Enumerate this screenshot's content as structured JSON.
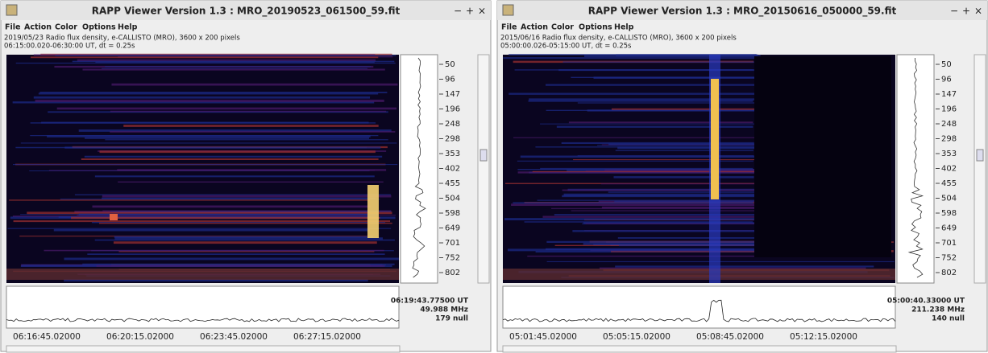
{
  "windows": [
    {
      "title": "RAPP Viewer Version 1.3 : MRO_20190523_061500_59.fit",
      "controls": [
        "−",
        "+",
        "×"
      ],
      "menu": [
        "File",
        "Action",
        "Color",
        "Options",
        "Help"
      ],
      "info": [
        "2019/05/23  Radio flux density, e-CALLISTO (MRO),  3600 x 200 pixels",
        "06:15:00.020-06:30:00 UT,  dt = 0.25s"
      ],
      "freq_ticks": [
        "50",
        "96",
        "147",
        "196",
        "248",
        "298",
        "353",
        "402",
        "455",
        "504",
        "598",
        "649",
        "701",
        "752",
        "802"
      ],
      "cursor": [
        "06:19:43.77500 UT",
        "49.988 MHz",
        "179 null"
      ],
      "time_ticks": [
        "06:16:45.02000",
        "06:20:15.02000",
        "06:23:45.02000",
        "06:27:15.02000"
      ]
    },
    {
      "title": "RAPP Viewer Version 1.3 : MRO_20150616_050000_59.fit",
      "controls": [
        "−",
        "+",
        "×"
      ],
      "menu": [
        "File",
        "Action",
        "Color",
        "Options",
        "Help"
      ],
      "info": [
        "2015/06/16  Radio flux density, e-CALLISTO (MRO),  3600 x 200 pixels",
        "05:00:00.026-05:15:00 UT,  dt = 0.25s"
      ],
      "freq_ticks": [
        "50",
        "96",
        "147",
        "196",
        "248",
        "298",
        "353",
        "402",
        "455",
        "504",
        "598",
        "649",
        "701",
        "752",
        "802"
      ],
      "cursor": [
        "05:00:40.33000 UT",
        "211.238 MHz",
        "140 null"
      ],
      "time_ticks": [
        "05:01:45.02000",
        "05:05:15.02000",
        "05:08:45.02000",
        "05:12:15.02000"
      ]
    }
  ]
}
